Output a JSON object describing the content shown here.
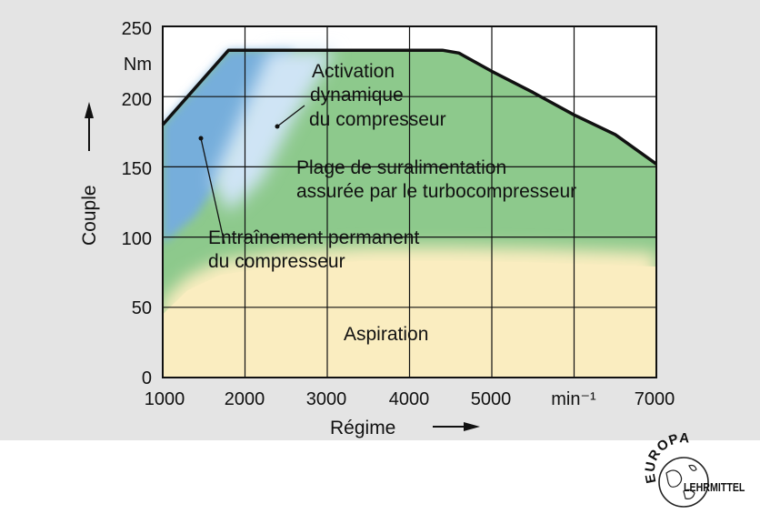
{
  "chart_data": {
    "type": "area",
    "x_ticks": [
      "1000",
      "2000",
      "3000",
      "4000",
      "5000",
      "min⁻¹",
      "7000"
    ],
    "y_ticks": [
      "0",
      "50",
      "100",
      "150",
      "200",
      "250"
    ],
    "y_unit": "Nm",
    "xlabel": "Régime",
    "ylabel": "Couple",
    "xlim": [
      1000,
      7000
    ],
    "ylim": [
      0,
      250
    ],
    "grid": true,
    "full_load_curve": {
      "x": [
        1000,
        1800,
        4400,
        4600,
        5000,
        5500,
        6000,
        6500,
        7000
      ],
      "y": [
        180,
        233,
        233,
        231,
        218,
        203,
        187,
        173,
        152
      ]
    },
    "regions": [
      {
        "label": "Aspiration",
        "color": "#faedc0",
        "upper_boundary": {
          "x": [
            1000,
            1300,
            1700,
            2500,
            3500,
            4500,
            5500,
            6500,
            7000
          ],
          "y": [
            55,
            72,
            83,
            90,
            93,
            93,
            92,
            90,
            89
          ]
        }
      },
      {
        "label": "Plage de suralimentation assurée par le turbocompresseur",
        "color": "#8dc98c"
      },
      {
        "label": "Activation dynamique du compresseur",
        "color": "#cfe4f5"
      },
      {
        "label": "Entraînement permanent du compresseur",
        "color": "#76aedb",
        "boundary": {
          "x": [
            1000,
            1400,
            1800,
            2200,
            2600
          ],
          "y": [
            95,
            115,
            150,
            195,
            233
          ]
        }
      }
    ],
    "annotations": {
      "activation": [
        "Activation",
        "dynamique",
        "du compresseur"
      ],
      "plage": [
        "Plage de suralimentation",
        "assurée par le turbocompresseur"
      ],
      "entrainement": [
        "Entraînement permanent",
        "du compresseur"
      ],
      "aspiration": "Aspiration"
    }
  },
  "logo": {
    "text_top": "EUROPA",
    "text_right": "LEHRMITTEL"
  }
}
